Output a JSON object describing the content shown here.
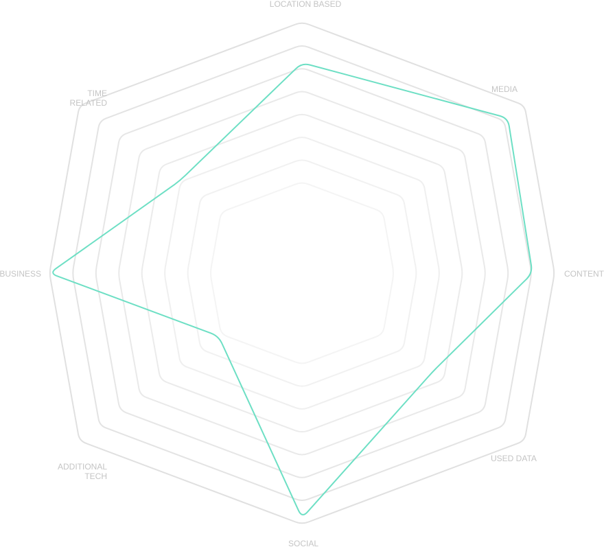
{
  "chart_data": {
    "type": "radar",
    "axes": [
      {
        "label": [
          "LOCATION BASED"
        ]
      },
      {
        "label": [
          "MEDIA"
        ]
      },
      {
        "label": [
          "CONTENT"
        ]
      },
      {
        "label": [
          "USED DATA"
        ]
      },
      {
        "label": [
          "SOCIAL"
        ]
      },
      {
        "label": [
          "ADDITIONAL",
          "TECH"
        ]
      },
      {
        "label": [
          "BUSINESS"
        ]
      },
      {
        "label": [
          "TIME",
          "RELATED"
        ]
      }
    ],
    "ring_count": 8,
    "range": [
      0,
      8
    ],
    "series": [
      {
        "values": [
          6.7,
          7.4,
          7.3,
          4.7,
          7.8,
          3.0,
          8.0,
          4.4
        ],
        "color": "#6ddfc4"
      }
    ],
    "grid_color": "#e0e0e0",
    "label_color": "#c4c4c4"
  }
}
